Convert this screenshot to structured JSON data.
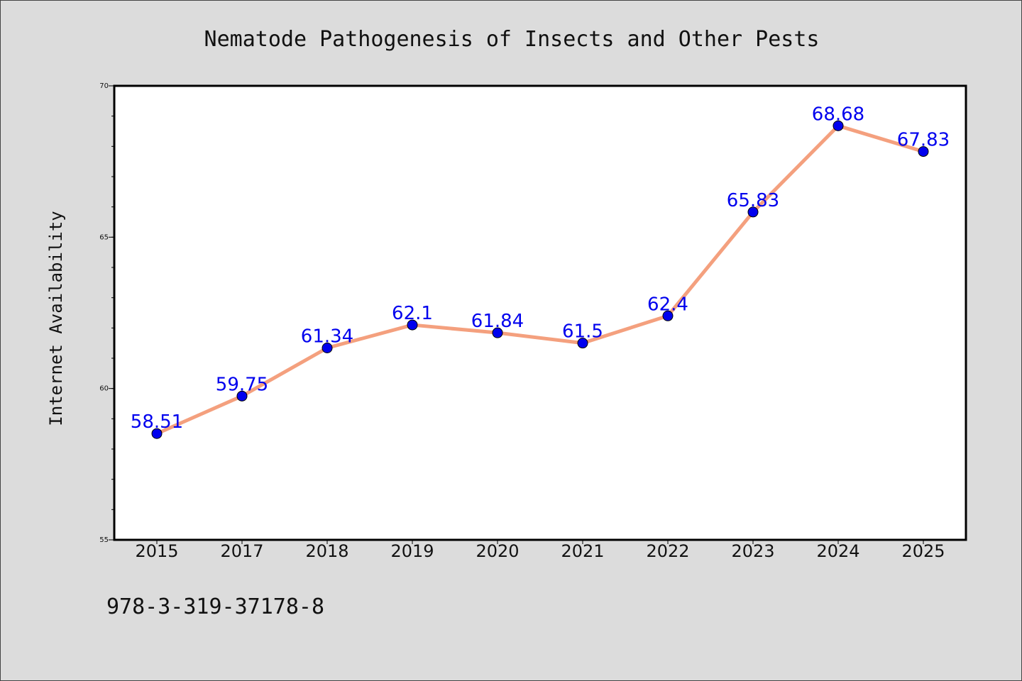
{
  "colors": {
    "background": "#dcdcdc",
    "plot_background": "#ffffff",
    "line": "#f4a07e",
    "marker": "#0000ee",
    "data_label": "#0000ee",
    "axis": "#000000"
  },
  "footer_text": "978-3-319-37178-8",
  "chart_data": {
    "type": "line",
    "title": "Nematode Pathogenesis of Insects and Other Pests",
    "xlabel": "",
    "ylabel": "Internet Availability",
    "categories": [
      "2015",
      "2017",
      "2018",
      "2019",
      "2020",
      "2021",
      "2022",
      "2023",
      "2024",
      "2025"
    ],
    "series": [
      {
        "values": [
          58.51,
          59.75,
          61.34,
          62.1,
          61.84,
          61.5,
          62.4,
          65.83,
          68.68,
          67.83
        ],
        "data_labels": [
          "58.51",
          "59.75",
          "61.34",
          "62.1",
          "61.84",
          "61.5",
          "62.4",
          "65.83",
          "68.68",
          "67.83"
        ]
      }
    ],
    "ylim": [
      55,
      70
    ],
    "yticks": [
      55,
      60,
      65,
      70
    ],
    "ytick_labels": [
      "55",
      "60",
      "65",
      "70"
    ],
    "y_minor_step": 1,
    "grid": false,
    "legend": "none"
  }
}
